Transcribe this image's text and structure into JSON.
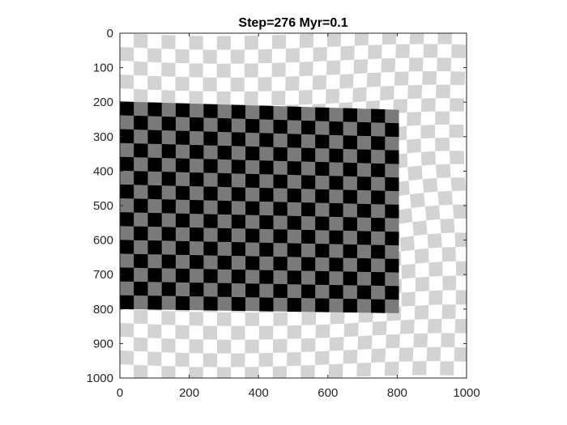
{
  "chart_data": {
    "type": "heatmap",
    "title": "Step=276 Myr=0.1",
    "xlabel": "",
    "ylabel": "",
    "xlim": [
      0,
      1000
    ],
    "ylim": [
      0,
      1000
    ],
    "y_direction": "reversed",
    "x_ticks": [
      0,
      200,
      400,
      600,
      800,
      1000
    ],
    "y_ticks": [
      0,
      100,
      200,
      300,
      400,
      500,
      600,
      700,
      800,
      900,
      1000
    ],
    "grid": false,
    "checker_cell_size": 40,
    "block": {
      "x_range": [
        0,
        805
      ],
      "top_left_y": 198,
      "top_right_y": 222,
      "bottom_left_y": 800,
      "bottom_right_y": 812
    },
    "colors": {
      "background": "#ffffff",
      "background_check": "#d3d3d3",
      "block_dark": "#000000",
      "block_light": "#7a7a7a",
      "axis": "#262626"
    }
  }
}
